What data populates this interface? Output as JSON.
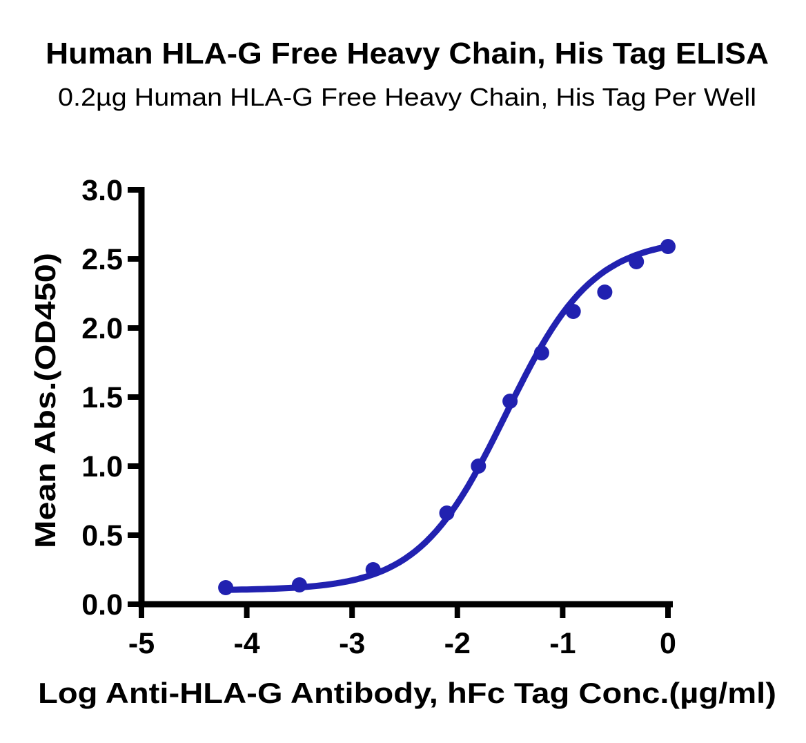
{
  "chart_data": {
    "type": "scatter",
    "title": "Human HLA-G Free Heavy Chain, His Tag ELISA",
    "subtitle": "0.2µg Human HLA-G Free Heavy Chain, His Tag Per Well",
    "xlabel": "Log Anti-HLA-G Antibody, hFc Tag Conc.(µg/ml)",
    "ylabel": "Mean Abs.(OD450)",
    "xlim": [
      -5,
      0
    ],
    "ylim": [
      0,
      3
    ],
    "x_ticks": [
      -5,
      -4,
      -3,
      -2,
      -1,
      0
    ],
    "x_tick_labels": [
      "-5",
      "-4",
      "-3",
      "-2",
      "-1",
      "0"
    ],
    "y_ticks": [
      0,
      0.5,
      1.0,
      1.5,
      2.0,
      2.5,
      3.0
    ],
    "y_tick_labels": [
      "0.0",
      "0.5",
      "1.0",
      "1.5",
      "2.0",
      "2.5",
      "3.0"
    ],
    "grid": false,
    "legend": "none",
    "series": [
      {
        "name": "Anti-HLA-G Antibody, hFc Tag",
        "x": [
          -4.2,
          -3.5,
          -2.8,
          -2.1,
          -1.8,
          -1.5,
          -1.2,
          -0.9,
          -0.6,
          -0.3,
          0.0
        ],
        "y": [
          0.12,
          0.14,
          0.25,
          0.66,
          1.0,
          1.47,
          1.82,
          2.12,
          2.26,
          2.48,
          2.59
        ]
      }
    ],
    "fit_curve": {
      "model": "4PL",
      "bottom": 0.1,
      "top": 2.65,
      "logEC50": -1.54,
      "hillslope": 1.05,
      "x_start": -4.2,
      "x_end": 0.0
    },
    "colors": {
      "series": "#2121b0",
      "axis": "#000000",
      "background": "#ffffff"
    }
  }
}
